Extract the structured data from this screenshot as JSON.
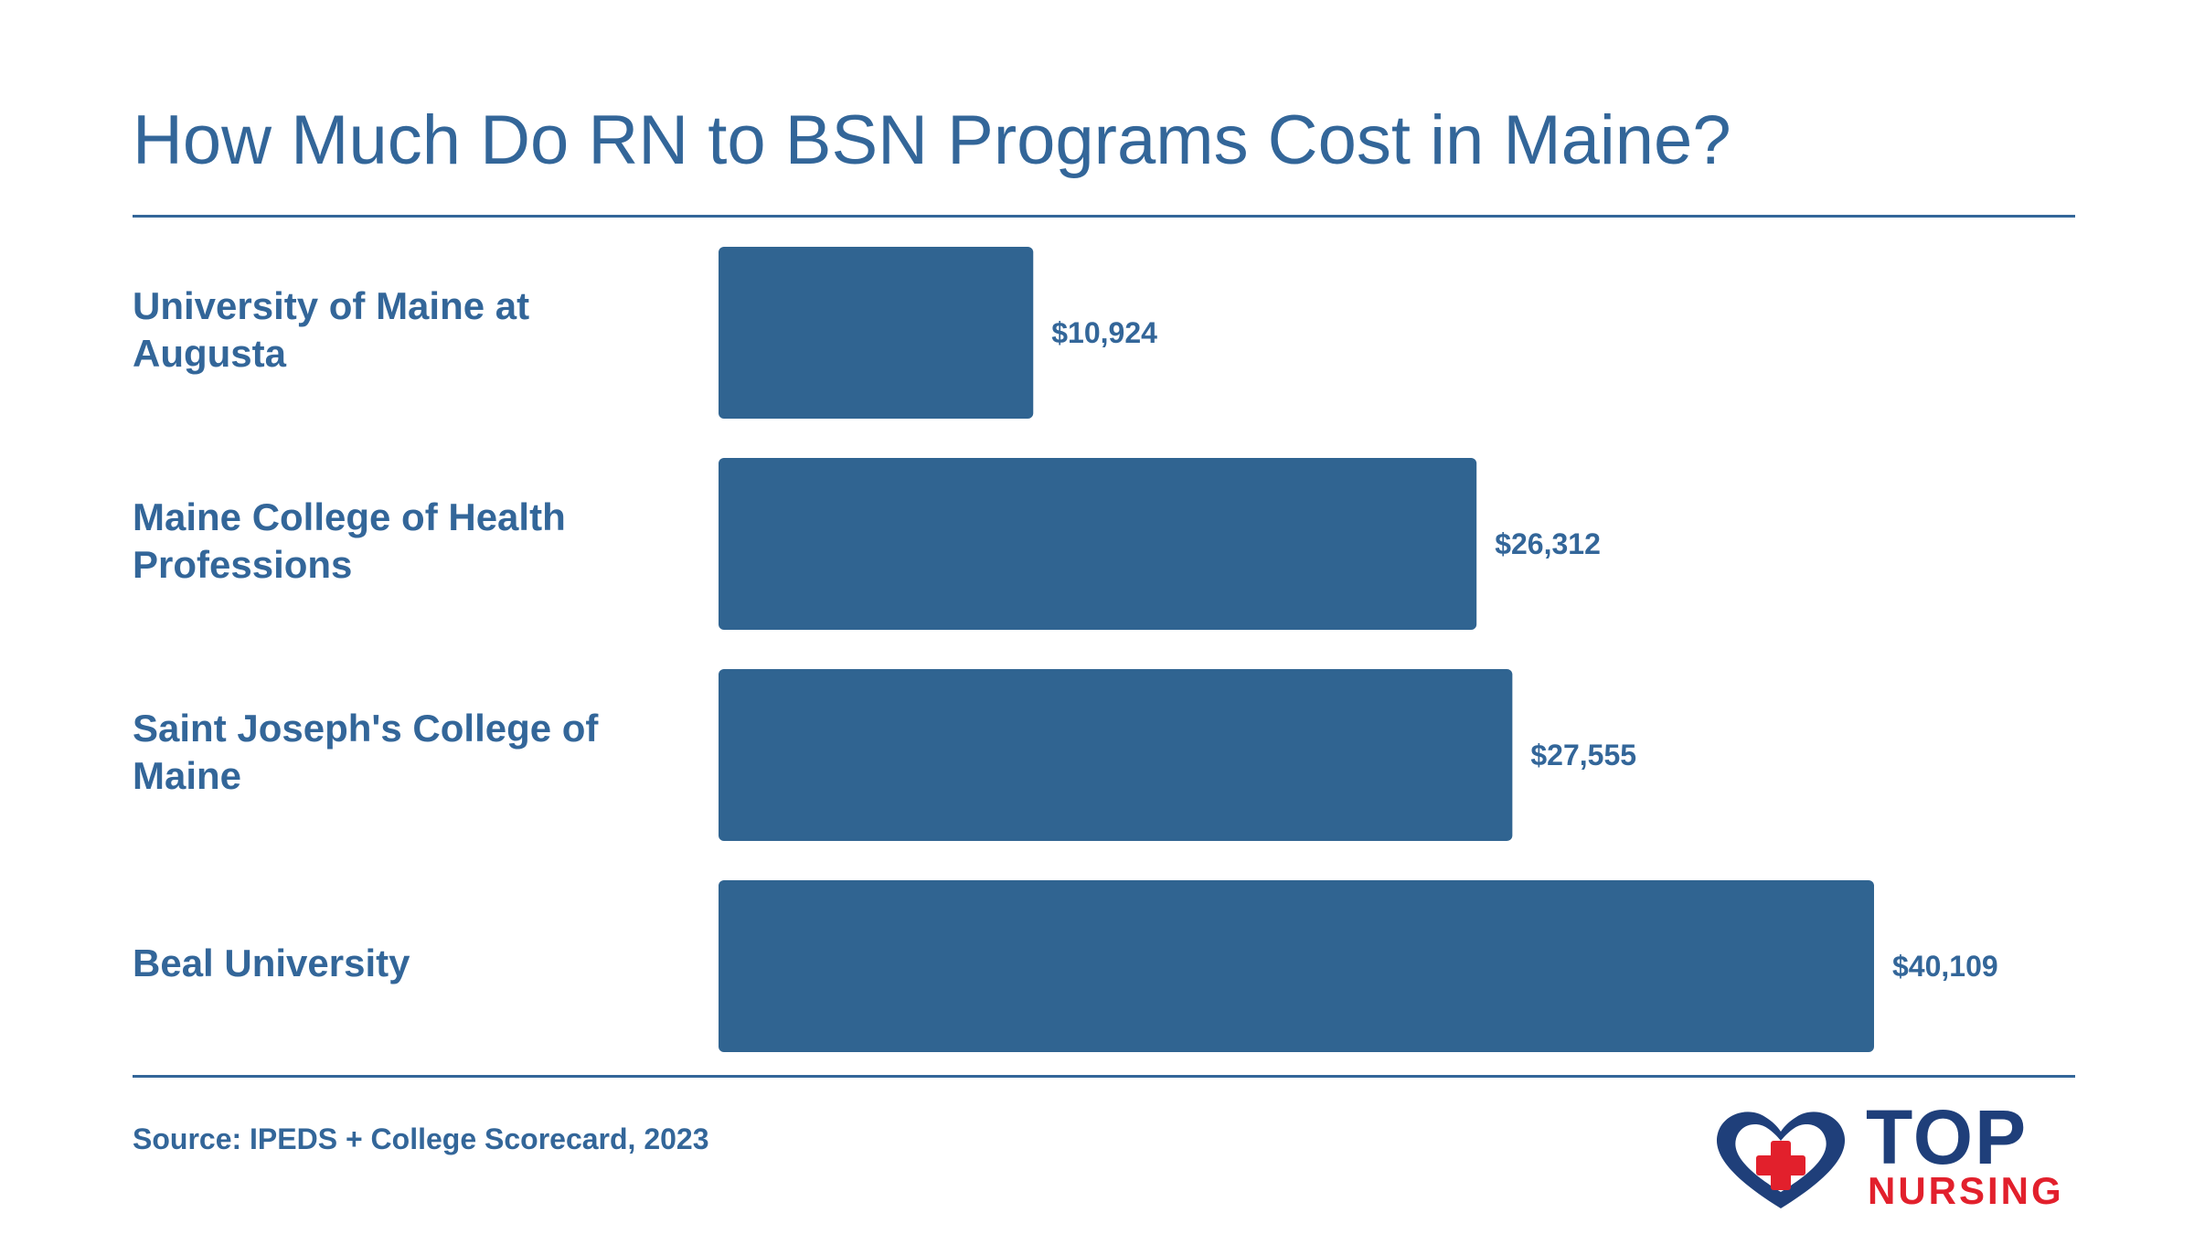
{
  "title": "How Much Do RN to BSN Programs Cost in Maine?",
  "source": "Source: IPEDS + College Scorecard, 2023",
  "logo": {
    "top_text": "TOP",
    "bottom_text": "NURSING",
    "icon": "heart-cross-icon"
  },
  "colors": {
    "bar": "#306491",
    "text": "#336699",
    "logo_blue": "#1f3f7a",
    "logo_red": "#e2202c"
  },
  "chart_data": {
    "type": "bar",
    "orientation": "horizontal",
    "categories": [
      "University of Maine at Augusta",
      "Maine College of Health Professions",
      "Saint Joseph's College of Maine",
      "Beal University"
    ],
    "values": [
      10924,
      26312,
      27555,
      40109
    ],
    "data_labels": [
      "$10,924",
      "$26,312",
      "$27,555",
      "$40,109"
    ],
    "title": "How Much Do RN to BSN Programs Cost in Maine?",
    "xlabel": "",
    "ylabel": "",
    "grid": false,
    "legend": "none"
  }
}
